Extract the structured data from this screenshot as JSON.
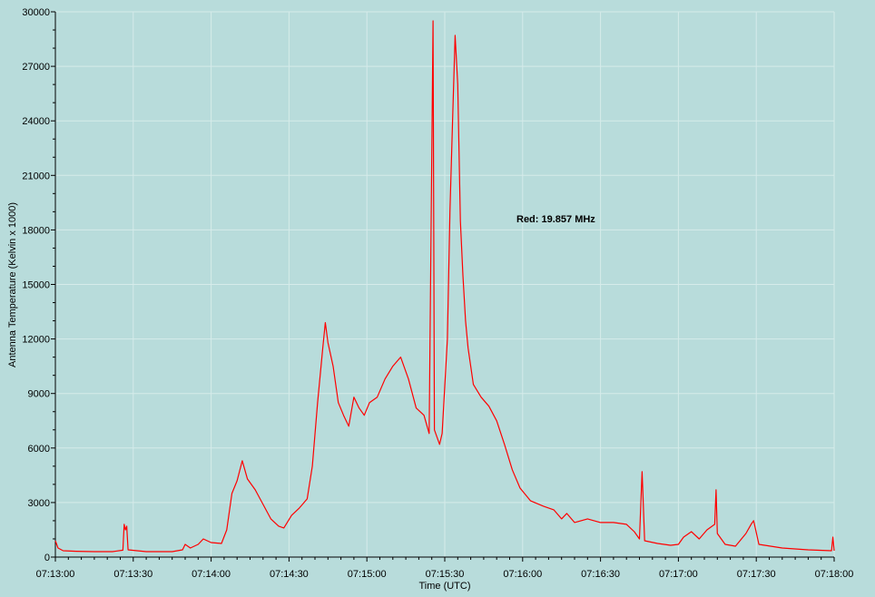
{
  "chart_data": {
    "type": "line",
    "xlabel": "Time (UTC)",
    "ylabel": "Antenna Temperature (Kelvin x 1000)",
    "annotation": "Red: 19.857 MHz",
    "xlim": [
      "07:13:00",
      "07:18:00"
    ],
    "ylim": [
      0,
      30000
    ],
    "x_tick_labels": [
      "07:13:00",
      "07:13:30",
      "07:14:00",
      "07:14:30",
      "07:15:00",
      "07:15:30",
      "07:16:00",
      "07:16:30",
      "07:17:00",
      "07:17:30",
      "07:18:00"
    ],
    "y_tick_labels": [
      "0",
      "3000",
      "6000",
      "9000",
      "12000",
      "15000",
      "18000",
      "21000",
      "24000",
      "27000",
      "30000"
    ],
    "grid": true,
    "series": [
      {
        "color": "#ff0000",
        "points": [
          [
            "07:13:00",
            900
          ],
          [
            "07:13:01",
            500
          ],
          [
            "07:13:03",
            350
          ],
          [
            "07:13:08",
            320
          ],
          [
            "07:13:15",
            300
          ],
          [
            "07:13:22",
            300
          ],
          [
            "07:13:26",
            380
          ],
          [
            "07:13:26.5",
            1800
          ],
          [
            "07:13:27",
            1500
          ],
          [
            "07:13:27.5",
            1700
          ],
          [
            "07:13:28",
            400
          ],
          [
            "07:13:35",
            300
          ],
          [
            "07:13:45",
            300
          ],
          [
            "07:13:49",
            400
          ],
          [
            "07:13:50",
            700
          ],
          [
            "07:13:52",
            500
          ],
          [
            "07:13:55",
            700
          ],
          [
            "07:13:57",
            1000
          ],
          [
            "07:14:00",
            800
          ],
          [
            "07:14:04",
            750
          ],
          [
            "07:14:06",
            1500
          ],
          [
            "07:14:08",
            3500
          ],
          [
            "07:14:10",
            4200
          ],
          [
            "07:14:12",
            5300
          ],
          [
            "07:14:14",
            4300
          ],
          [
            "07:14:17",
            3700
          ],
          [
            "07:14:20",
            2900
          ],
          [
            "07:14:23",
            2100
          ],
          [
            "07:14:26",
            1700
          ],
          [
            "07:14:28",
            1600
          ],
          [
            "07:14:31",
            2300
          ],
          [
            "07:14:34",
            2700
          ],
          [
            "07:14:37",
            3200
          ],
          [
            "07:14:39",
            5000
          ],
          [
            "07:14:41",
            8500
          ],
          [
            "07:14:43",
            11500
          ],
          [
            "07:14:44",
            12900
          ],
          [
            "07:14:45",
            11800
          ],
          [
            "07:14:47",
            10500
          ],
          [
            "07:14:49",
            8500
          ],
          [
            "07:14:51",
            7800
          ],
          [
            "07:14:53",
            7200
          ],
          [
            "07:14:55",
            8800
          ],
          [
            "07:14:57",
            8200
          ],
          [
            "07:14:59",
            7800
          ],
          [
            "07:15:01",
            8500
          ],
          [
            "07:15:04",
            8800
          ],
          [
            "07:15:07",
            9800
          ],
          [
            "07:15:10",
            10500
          ],
          [
            "07:15:13",
            11000
          ],
          [
            "07:15:16",
            9800
          ],
          [
            "07:15:19",
            8200
          ],
          [
            "07:15:22",
            7800
          ],
          [
            "07:15:24",
            6800
          ],
          [
            "07:15:25.5",
            29500
          ],
          [
            "07:15:26",
            7000
          ],
          [
            "07:15:28",
            6200
          ],
          [
            "07:15:29",
            6800
          ],
          [
            "07:15:31",
            12000
          ],
          [
            "07:15:32",
            19000
          ],
          [
            "07:15:33",
            24000
          ],
          [
            "07:15:34",
            28700
          ],
          [
            "07:15:35",
            26000
          ],
          [
            "07:15:36",
            18500
          ],
          [
            "07:15:37",
            15500
          ],
          [
            "07:15:38",
            13000
          ],
          [
            "07:15:39",
            11500
          ],
          [
            "07:15:41",
            9500
          ],
          [
            "07:15:44",
            8800
          ],
          [
            "07:15:47",
            8300
          ],
          [
            "07:15:50",
            7500
          ],
          [
            "07:15:53",
            6200
          ],
          [
            "07:15:56",
            4800
          ],
          [
            "07:15:59",
            3800
          ],
          [
            "07:16:03",
            3100
          ],
          [
            "07:16:08",
            2800
          ],
          [
            "07:16:12",
            2600
          ],
          [
            "07:16:15",
            2100
          ],
          [
            "07:16:17",
            2400
          ],
          [
            "07:16:20",
            1900
          ],
          [
            "07:16:25",
            2100
          ],
          [
            "07:16:30",
            1900
          ],
          [
            "07:16:35",
            1900
          ],
          [
            "07:16:40",
            1800
          ],
          [
            "07:16:43",
            1400
          ],
          [
            "07:16:45",
            1000
          ],
          [
            "07:16:46",
            4700
          ],
          [
            "07:16:47",
            900
          ],
          [
            "07:16:52",
            750
          ],
          [
            "07:16:57",
            650
          ],
          [
            "07:17:00",
            700
          ],
          [
            "07:17:02",
            1100
          ],
          [
            "07:17:05",
            1400
          ],
          [
            "07:17:08",
            1000
          ],
          [
            "07:17:11",
            1500
          ],
          [
            "07:17:14",
            1800
          ],
          [
            "07:17:14.5",
            3700
          ],
          [
            "07:17:15",
            1300
          ],
          [
            "07:17:18",
            700
          ],
          [
            "07:17:22",
            600
          ],
          [
            "07:17:26",
            1300
          ],
          [
            "07:17:28",
            1800
          ],
          [
            "07:17:29",
            2000
          ],
          [
            "07:17:31",
            700
          ],
          [
            "07:17:40",
            500
          ],
          [
            "07:17:50",
            400
          ],
          [
            "07:17:59",
            350
          ],
          [
            "07:17:59.5",
            1100
          ],
          [
            "07:18:00",
            350
          ]
        ]
      }
    ]
  }
}
